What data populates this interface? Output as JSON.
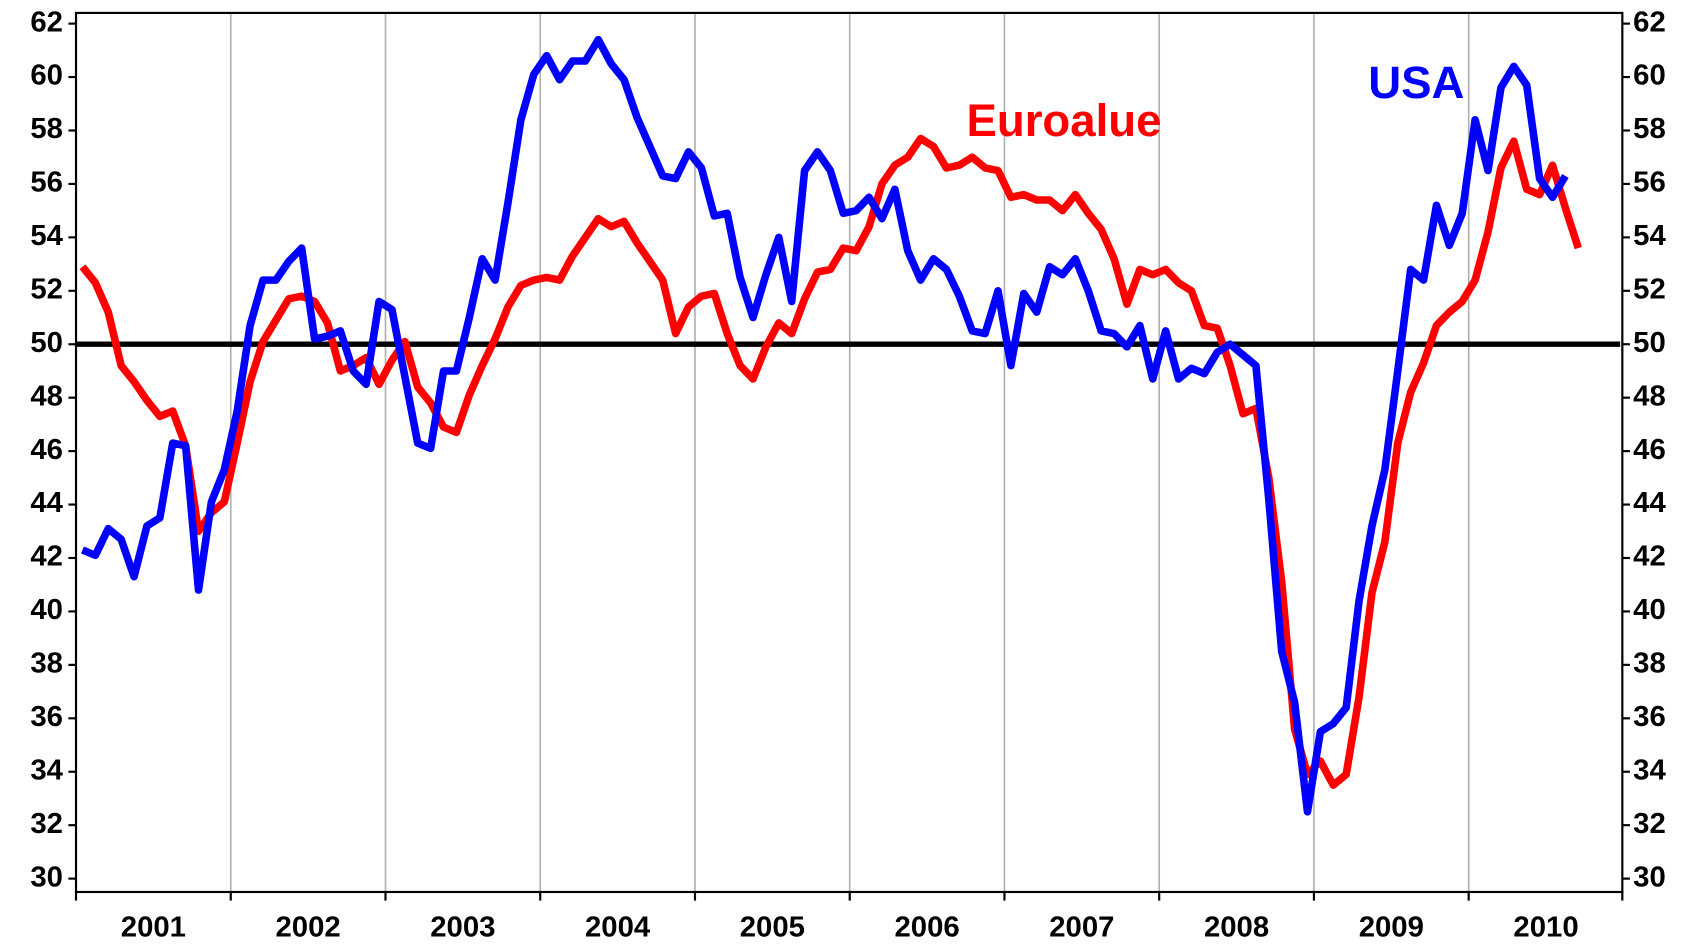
{
  "chart_data": {
    "type": "line",
    "categories": [
      null,
      null,
      null,
      null,
      null,
      null,
      "2001",
      null,
      null,
      null,
      null,
      null,
      null,
      null,
      null,
      null,
      null,
      null,
      "2002",
      null,
      null,
      null,
      null,
      null,
      null,
      null,
      null,
      null,
      null,
      null,
      "2003",
      null,
      null,
      null,
      null,
      null,
      null,
      null,
      null,
      null,
      null,
      null,
      "2004",
      null,
      null,
      null,
      null,
      null,
      null,
      null,
      null,
      null,
      null,
      null,
      "2005",
      null,
      null,
      null,
      null,
      null,
      null,
      null,
      null,
      null,
      null,
      null,
      "2006",
      null,
      null,
      null,
      null,
      null,
      null,
      null,
      null,
      null,
      null,
      null,
      "2007",
      null,
      null,
      null,
      null,
      null,
      null,
      null,
      null,
      null,
      null,
      null,
      "2008",
      null,
      null,
      null,
      null,
      null,
      null,
      null,
      null,
      null,
      null,
      null,
      "2009",
      null,
      null,
      null,
      null,
      null,
      null,
      null,
      null,
      null,
      null,
      null,
      "2010",
      null,
      null
    ],
    "series": [
      {
        "name": "Euroalue",
        "color": "#ff0000",
        "values": [
          52.9,
          52.3,
          51.2,
          49.2,
          48.6,
          47.9,
          47.3,
          47.5,
          46.2,
          43.0,
          43.7,
          44.1,
          46.3,
          48.6,
          50.1,
          50.9,
          51.7,
          51.8,
          51.6,
          50.8,
          49.0,
          49.2,
          49.5,
          48.5,
          49.4,
          50.1,
          48.4,
          47.8,
          46.9,
          46.7,
          48.1,
          49.2,
          50.2,
          51.4,
          52.2,
          52.4,
          52.5,
          52.4,
          53.3,
          54.0,
          54.7,
          54.4,
          54.6,
          53.8,
          53.1,
          52.4,
          50.4,
          51.4,
          51.8,
          51.9,
          50.4,
          49.2,
          48.7,
          49.9,
          50.8,
          50.4,
          51.7,
          52.7,
          52.8,
          53.6,
          53.5,
          54.4,
          56.0,
          56.7,
          57.0,
          57.7,
          57.4,
          56.6,
          56.7,
          57.0,
          56.6,
          56.5,
          55.5,
          55.6,
          55.4,
          55.4,
          55.0,
          55.6,
          54.9,
          54.3,
          53.2,
          51.5,
          52.8,
          52.6,
          52.8,
          52.3,
          52.0,
          50.7,
          50.6,
          49.2,
          47.4,
          47.6,
          45.0,
          41.1,
          35.6,
          33.9,
          34.4,
          33.5,
          33.9,
          36.8,
          40.7,
          42.6,
          46.3,
          48.2,
          49.3,
          50.7,
          51.2,
          51.6,
          52.4,
          54.2,
          56.6,
          57.6,
          55.8,
          55.6,
          56.7,
          55.1,
          53.6
        ]
      },
      {
        "name": "USA",
        "color": "#0000ff",
        "values": [
          42.3,
          42.1,
          43.1,
          42.7,
          41.3,
          43.2,
          43.5,
          46.3,
          46.2,
          40.8,
          44.1,
          45.3,
          47.5,
          50.7,
          52.4,
          52.4,
          53.1,
          53.6,
          50.2,
          50.3,
          50.5,
          49.0,
          48.5,
          51.6,
          51.3,
          48.8,
          46.3,
          46.1,
          49.0,
          49.0,
          51.0,
          53.2,
          52.4,
          55.3,
          58.4,
          60.1,
          60.8,
          59.9,
          60.6,
          60.6,
          61.4,
          60.5,
          59.9,
          58.5,
          57.4,
          56.3,
          56.2,
          57.2,
          56.6,
          54.8,
          54.9,
          52.5,
          51.0,
          52.6,
          54.0,
          51.6,
          56.5,
          57.2,
          56.5,
          54.9,
          55.0,
          55.5,
          54.7,
          55.8,
          53.5,
          52.4,
          53.2,
          52.8,
          51.8,
          50.5,
          50.4,
          52.0,
          49.2,
          51.9,
          51.2,
          52.9,
          52.6,
          53.2,
          52.0,
          50.5,
          50.4,
          49.9,
          50.7,
          48.7,
          50.5,
          48.7,
          49.1,
          48.9,
          49.7,
          50.0,
          49.6,
          49.2,
          44.2,
          38.5,
          36.6,
          32.5,
          35.5,
          35.8,
          36.4,
          40.4,
          43.2,
          45.3,
          49.0,
          52.8,
          52.4,
          55.2,
          53.7,
          54.9,
          58.4,
          56.5,
          59.6,
          60.4,
          59.7,
          56.2,
          55.5,
          56.3,
          null
        ]
      }
    ],
    "ylim": [
      29.5,
      62.4
    ],
    "yticks": [
      30,
      32,
      34,
      36,
      38,
      40,
      42,
      44,
      46,
      48,
      50,
      52,
      54,
      56,
      58,
      60,
      62
    ],
    "y2lim": [
      29.5,
      62.4
    ],
    "y2ticks": [
      30,
      32,
      34,
      36,
      38,
      40,
      42,
      44,
      46,
      48,
      50,
      52,
      54,
      56,
      58,
      60,
      62
    ],
    "reference_line": {
      "value": 50,
      "color": "#000000"
    },
    "grid": true
  }
}
